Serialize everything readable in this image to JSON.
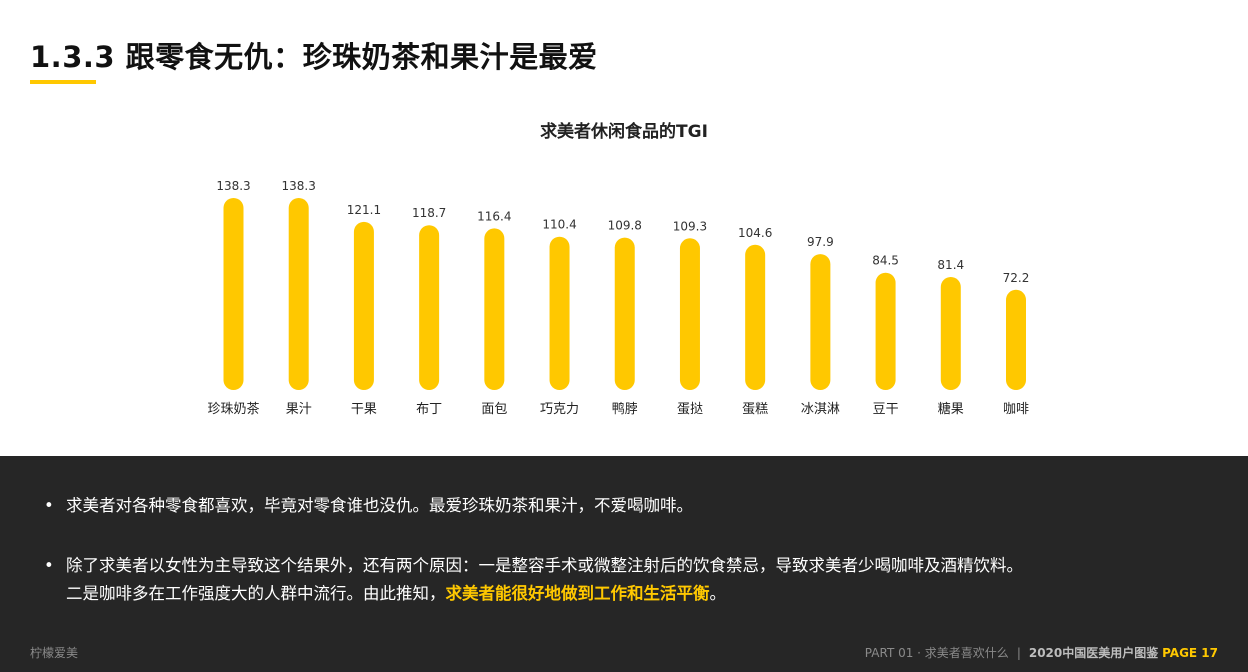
{
  "header": {
    "title": "1.3.3 跟零食无仇：珍珠奶茶和果汁是最爱"
  },
  "chart_data": {
    "type": "bar",
    "title": "求美者休闲食品的TGI",
    "categories": [
      "珍珠奶茶",
      "果汁",
      "干果",
      "布丁",
      "面包",
      "巧克力",
      "鸭脖",
      "蛋挞",
      "蛋糕",
      "冰淇淋",
      "豆干",
      "糖果",
      "咖啡"
    ],
    "values": [
      138.3,
      138.3,
      121.1,
      118.7,
      116.4,
      110.4,
      109.8,
      109.3,
      104.6,
      97.9,
      84.5,
      81.4,
      72.2
    ],
    "value_labels": [
      "138.3",
      "138.3",
      "121.1",
      "118.7",
      "116.4",
      "110.4",
      "109.8",
      "109.3",
      "104.6",
      "97.9",
      "84.5",
      "81.4",
      "72.2"
    ],
    "bar_color": "#FFC800",
    "grid": false,
    "axes_visible": false
  },
  "summary": {
    "bullet_symbol": "•",
    "point1": "求美者对各种零食都喜欢，毕竟对零食谁也没仇。最爱珍珠奶茶和果汁，不爱喝咖啡。",
    "point2_line1": "除了求美者以女性为主导致这个结果外，还有两个原因：一是整容手术或微整注射后的饮食禁忌，导致求美者少喝咖啡及酒精饮料。",
    "point2_line2_prefix": "二是咖啡多在工作强度大的人群中流行。由此推知，",
    "point2_highlight": "求美者能很好地做到工作和生活平衡",
    "point2_suffix": "。"
  },
  "footer": {
    "brand": "柠檬爱美",
    "part": "PART 01 · 求美者喜欢什么",
    "separator": "|",
    "report": "2020中国医美用户图鉴",
    "page": "PAGE  17"
  },
  "colors": {
    "accent": "#FFC800",
    "panel_bg": "#262626"
  }
}
